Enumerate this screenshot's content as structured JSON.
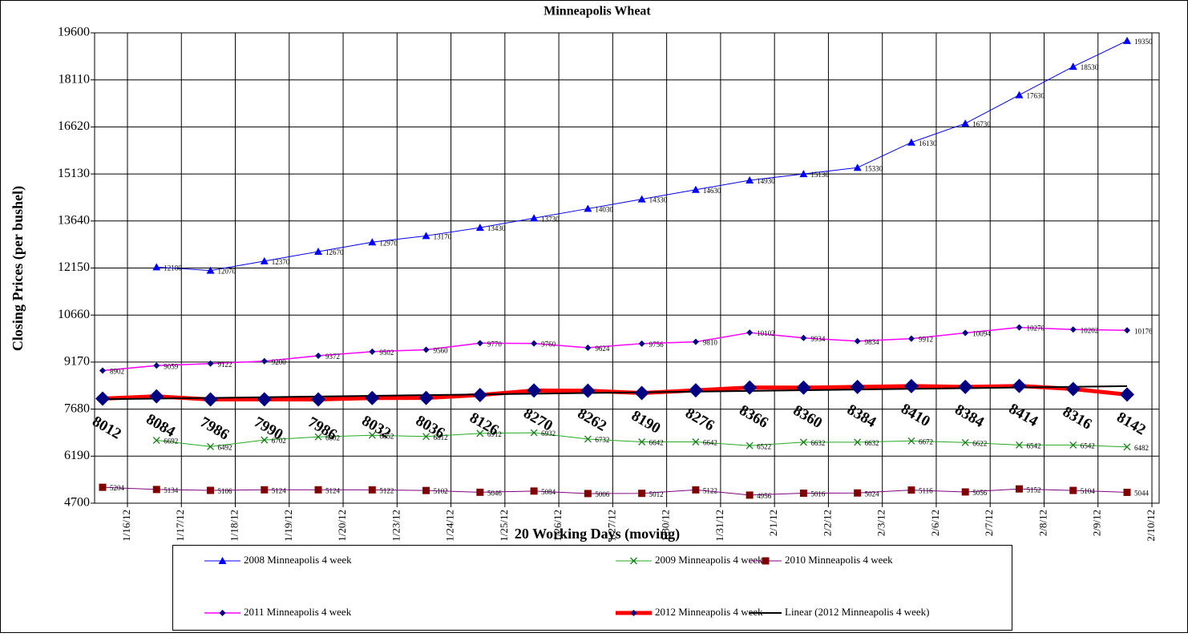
{
  "chart_data": {
    "type": "line",
    "title": "Minneapolis Wheat",
    "x_label": "20 Working Days (moving)",
    "y_label": "Closing Prices (per bushel)",
    "categories": [
      "1/16/12",
      "1/17/12",
      "1/18/12",
      "1/19/12",
      "1/20/12",
      "1/23/12",
      "1/24/12",
      "1/25/12",
      "1/26/12",
      "1/27/12",
      "1/30/12",
      "1/31/12",
      "2/1/12",
      "2/2/12",
      "2/3/12",
      "2/6/12",
      "2/7/12",
      "2/8/12",
      "2/9/12",
      "2/10/12"
    ],
    "ylim": [
      4700,
      19600
    ],
    "yticks": [
      4700,
      6190,
      7680,
      9170,
      10660,
      12150,
      13640,
      15130,
      16620,
      18110,
      19600
    ],
    "grid": true,
    "legend": "bottom",
    "series": [
      {
        "name": "2008 Minneapolis 4 week",
        "color": "#0000ff",
        "marker": "triangle",
        "marker_color": "#0000ff",
        "line_width": 1,
        "data_labels": "small",
        "values": [
          null,
          12180,
          12070,
          12370,
          12670,
          12970,
          13170,
          13430,
          13730,
          14030,
          14330,
          14630,
          14930,
          15130,
          15330,
          16130,
          16730,
          17630,
          18530,
          19350
        ]
      },
      {
        "name": "2009 Minneapolis 4 week",
        "color": "#22aa22",
        "marker": "x",
        "marker_color": "#1a7a1a",
        "line_width": 1,
        "data_labels": "small",
        "values": [
          null,
          6692,
          6492,
          6702,
          6802,
          6852,
          6812,
          6912,
          6932,
          6732,
          6642,
          6642,
          6522,
          6632,
          6632,
          6672,
          6622,
          6542,
          6542,
          6482
        ]
      },
      {
        "name": "2010 Minneapolis 4 week",
        "color": "#800080",
        "marker": "square",
        "marker_color": "#800000",
        "line_width": 1,
        "data_labels": "small",
        "values": [
          5204,
          5134,
          5106,
          5124,
          5124,
          5122,
          5102,
          5046,
          5084,
          5006,
          5012,
          5122,
          4956,
          5016,
          5024,
          5116,
          5056,
          5152,
          5104,
          5044
        ]
      },
      {
        "name": "2011 Minneapolis 4 week",
        "color": "#ff00ff",
        "marker": "diamond",
        "marker_color": "#000080",
        "line_width": 1.5,
        "data_labels": "small",
        "values": [
          8902,
          9059,
          9122,
          9200,
          9372,
          9502,
          9560,
          9770,
          9760,
          9624,
          9756,
          9810,
          10102,
          9934,
          9834,
          9912,
          10094,
          10270,
          10202,
          10176
        ]
      },
      {
        "name": "2012 Minneapolis 4 week",
        "color": "#ff0000",
        "marker": "big-diamond",
        "marker_color": "#000080",
        "line_width": 5,
        "data_labels": "large",
        "values": [
          8012,
          8084,
          7986,
          7990,
          7986,
          8032,
          8036,
          8126,
          8270,
          8262,
          8190,
          8276,
          8366,
          8360,
          8384,
          8410,
          8384,
          8414,
          8316,
          8142
        ]
      },
      {
        "name": "Linear (2012 Minneapolis 4 week)",
        "color": "#000000",
        "marker": "none",
        "marker_color": "#000000",
        "line_width": 2,
        "data_labels": "none",
        "values": [
          7992,
          8014,
          8036,
          8058,
          8080,
          8102,
          8124,
          8146,
          8168,
          8190,
          8212,
          8234,
          8256,
          8278,
          8300,
          8322,
          8344,
          8366,
          8388,
          8410
        ]
      }
    ]
  }
}
